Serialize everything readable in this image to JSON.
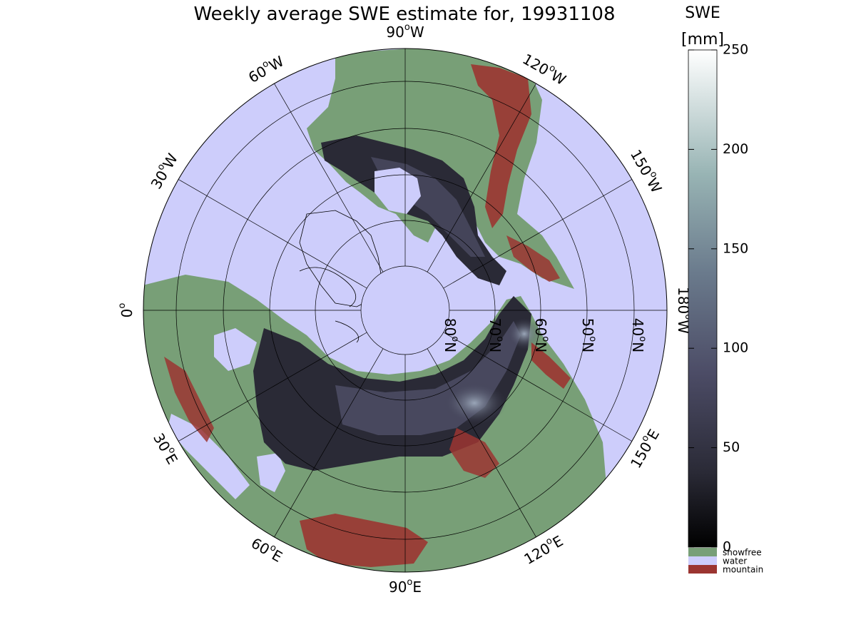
{
  "title": "Weekly average SWE estimate for, 19931108",
  "colorbar": {
    "title_line1": "SWE",
    "title_line2": "[mm]",
    "ticks": [
      "250",
      "200",
      "150",
      "100",
      "50",
      "0"
    ],
    "range": [
      0,
      250
    ],
    "categories": [
      {
        "label": "snowfree",
        "color": "#789f77"
      },
      {
        "label": "water",
        "color": "#cdcdfb"
      },
      {
        "label": "mountain",
        "color": "#9b3531"
      }
    ]
  },
  "meridian_labels": [
    {
      "text": "90",
      "suffix": "W",
      "deg": 0
    },
    {
      "text": "120",
      "suffix": "W",
      "deg": 30
    },
    {
      "text": "150",
      "suffix": "W",
      "deg": 60
    },
    {
      "text": "180",
      "suffix": "W",
      "deg": 90
    },
    {
      "text": "150",
      "suffix": "E",
      "deg": 120
    },
    {
      "text": "120",
      "suffix": "E",
      "deg": 150
    },
    {
      "text": "90",
      "suffix": "E",
      "deg": 180
    },
    {
      "text": "60",
      "suffix": "E",
      "deg": 210
    },
    {
      "text": "30",
      "suffix": "E",
      "deg": 240
    },
    {
      "text": "0",
      "suffix": "",
      "deg": 270
    },
    {
      "text": "30",
      "suffix": "W",
      "deg": 300
    },
    {
      "text": "60",
      "suffix": "W",
      "deg": 330
    }
  ],
  "parallel_labels": [
    {
      "text": "80",
      "suffix": "N",
      "lat": 80
    },
    {
      "text": "70",
      "suffix": "N",
      "lat": 70
    },
    {
      "text": "60",
      "suffix": "N",
      "lat": 60
    },
    {
      "text": "50",
      "suffix": "N",
      "lat": 50
    },
    {
      "text": "40",
      "suffix": "N",
      "lat": 40
    }
  ],
  "map_colors": {
    "water": "#cdcdfb",
    "snowfree": "#789f77",
    "mountain": "#9b3531",
    "snow_low": "#1d1d26",
    "snow_mid": "#4b4b63",
    "snow_high": "#8a8aa8"
  }
}
